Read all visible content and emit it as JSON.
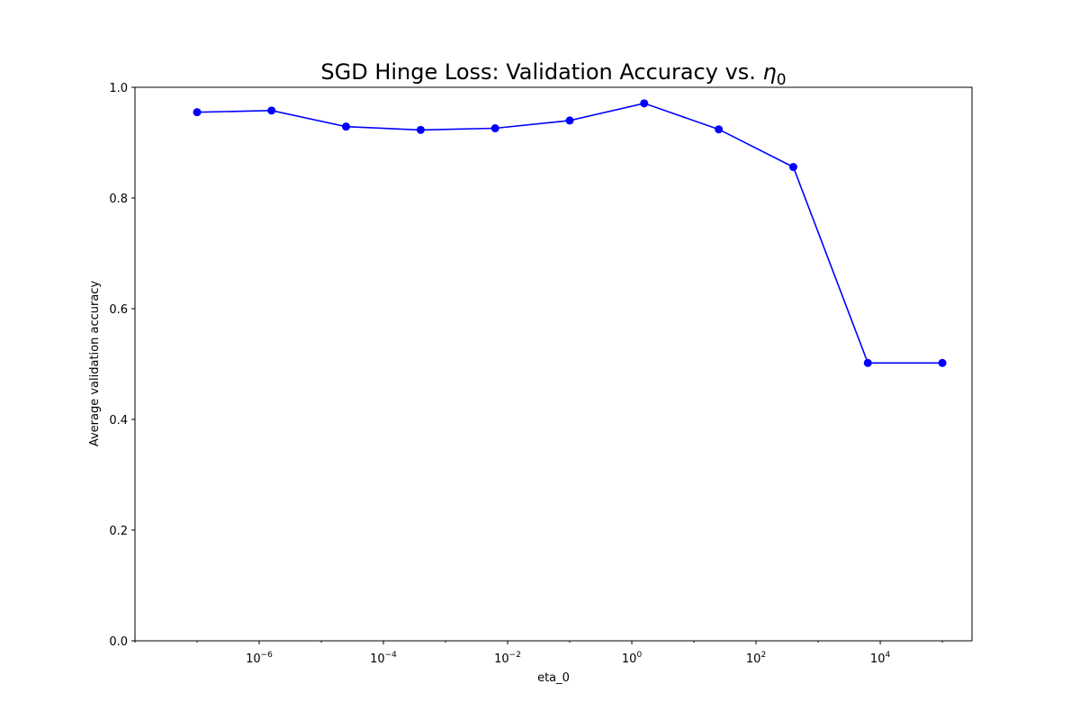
{
  "chart_data": {
    "type": "line",
    "title_text": "SGD Hinge Loss: Validation Accuracy vs. ",
    "title_symbol": "η",
    "title_subscript": "0",
    "xlabel": "eta_0",
    "ylabel": "Average validation accuracy",
    "x_scale": "log",
    "xlim": [
      1e-08,
      300000.0
    ],
    "ylim": [
      0.0,
      1.0
    ],
    "grid": false,
    "marker": "circle",
    "color": "#0000ff",
    "y_ticks": [
      {
        "value": 0.0,
        "label": "0.0"
      },
      {
        "value": 0.2,
        "label": "0.2"
      },
      {
        "value": 0.4,
        "label": "0.4"
      },
      {
        "value": 0.6,
        "label": "0.6"
      },
      {
        "value": 0.8,
        "label": "0.8"
      },
      {
        "value": 1.0,
        "label": "1.0"
      }
    ],
    "x_ticks": [
      {
        "value": 1e-06,
        "base": "10",
        "exp": "−6"
      },
      {
        "value": 0.0001,
        "base": "10",
        "exp": "−4"
      },
      {
        "value": 0.01,
        "base": "10",
        "exp": "−2"
      },
      {
        "value": 1,
        "base": "10",
        "exp": "0"
      },
      {
        "value": 100,
        "base": "10",
        "exp": "2"
      },
      {
        "value": 10000,
        "base": "10",
        "exp": "4"
      }
    ],
    "series": [
      {
        "x": [
          1e-07,
          1.58e-06,
          2.5e-05,
          0.000398,
          0.0063,
          0.1,
          1.58,
          25.1,
          398,
          6310,
          100000.0
        ],
        "y": [
          0.955,
          0.958,
          0.929,
          0.923,
          0.926,
          0.94,
          0.971,
          0.924,
          0.856,
          0.502,
          0.502
        ]
      }
    ]
  }
}
